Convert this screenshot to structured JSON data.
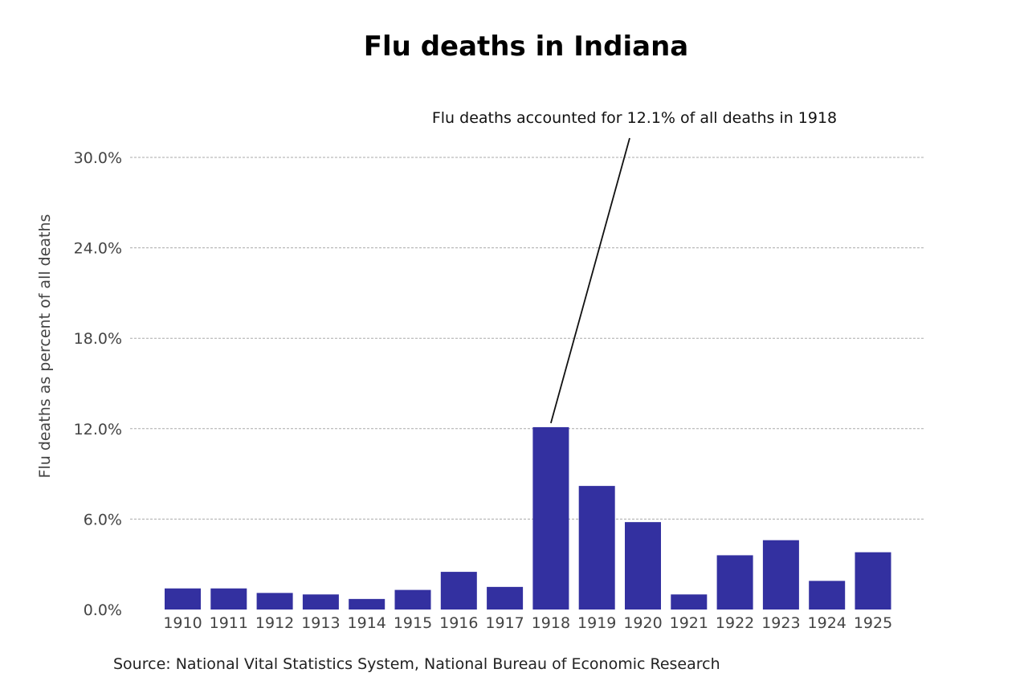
{
  "chart_data": {
    "type": "bar",
    "title": "Flu deaths in Indiana",
    "xlabel": "",
    "ylabel": "Flu deaths as percent of all deaths",
    "categories": [
      "1910",
      "1911",
      "1912",
      "1913",
      "1914",
      "1915",
      "1916",
      "1917",
      "1918",
      "1919",
      "1920",
      "1921",
      "1922",
      "1923",
      "1924",
      "1925"
    ],
    "values": [
      1.4,
      1.4,
      1.1,
      1.0,
      0.7,
      1.3,
      2.5,
      1.5,
      12.1,
      8.2,
      5.8,
      1.0,
      3.6,
      4.6,
      1.9,
      3.8
    ],
    "ylim": [
      0,
      30
    ],
    "yticks": [
      0,
      6,
      12,
      18,
      24,
      30
    ],
    "ytick_labels": [
      "0.0%",
      "6.0%",
      "12.0%",
      "18.0%",
      "24.0%",
      "30.0%"
    ],
    "grid": "horizontal-dashed",
    "bar_color": "#3330a0",
    "annotation": {
      "text": "Flu deaths accounted for 12.1% of all deaths in 1918",
      "category": "1918",
      "value": 12.1
    },
    "source": "Source: National Vital Statistics System, National Bureau of Economic Research"
  }
}
